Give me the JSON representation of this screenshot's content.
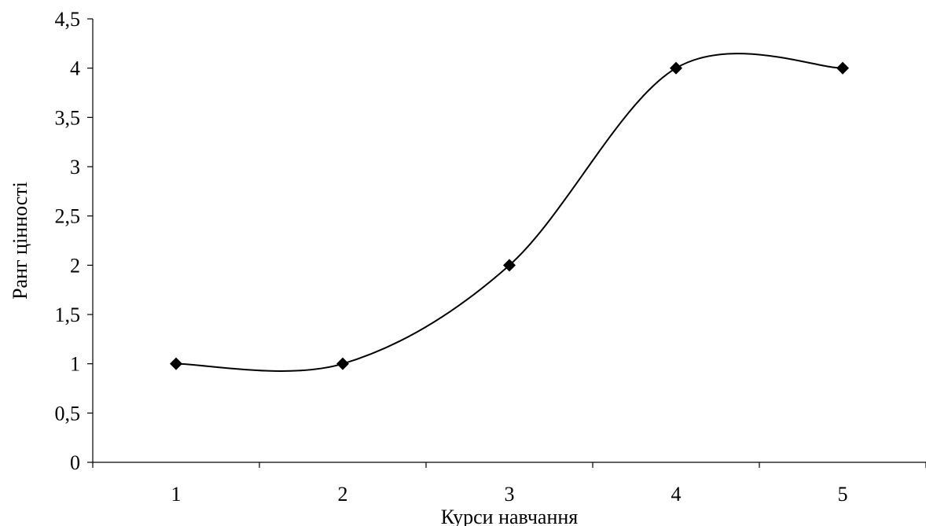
{
  "chart_data": {
    "type": "line",
    "smooth": true,
    "title": "",
    "xlabel": "Курси навчання",
    "ylabel": "Ранг цінності",
    "categories": [
      "1",
      "2",
      "3",
      "4",
      "5"
    ],
    "series": [
      {
        "values": [
          1,
          1,
          2,
          4,
          4
        ],
        "marker": "diamond",
        "color": "#000000"
      }
    ],
    "ylim": [
      0,
      4.5
    ],
    "y_ticks": [
      "0",
      "0,5",
      "1",
      "1,5",
      "2",
      "2,5",
      "3",
      "3,5",
      "4",
      "4,5"
    ],
    "grid": false,
    "legend": "none"
  }
}
